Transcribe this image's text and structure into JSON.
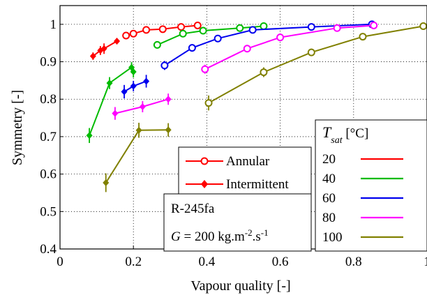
{
  "chart_data": {
    "type": "line",
    "xlabel": "Vapour quality [-]",
    "ylabel": "Symmetry [-]",
    "xlim": [
      0,
      1
    ],
    "ylim": [
      0.4,
      1.05
    ],
    "x_ticks": [
      0,
      0.2,
      0.4,
      0.6,
      0.8,
      1
    ],
    "x_tick_labels": [
      "0",
      "0.2",
      "0.4",
      "0.6",
      "0.8",
      "1"
    ],
    "y_ticks": [
      0.4,
      0.5,
      0.6,
      0.7,
      0.8,
      0.9,
      1.0
    ],
    "y_tick_labels": [
      "0.4",
      "0.5",
      "0.6",
      "0.7",
      "0.8",
      "0.9",
      "1"
    ],
    "grid": true,
    "annotation": {
      "fluid": "R-245fa",
      "flux_symbol": "G",
      "flux_text": " = 200 kg.m",
      "flux_exp1": "-2",
      "flux_mid": ".s",
      "flux_exp2": "-1"
    },
    "marker_legend": [
      {
        "label": "Annular",
        "marker": "open-circle",
        "color": "#ff0000"
      },
      {
        "label": "Intermittent",
        "marker": "filled-diamond",
        "color": "#ff0000"
      }
    ],
    "tsat_legend": {
      "title_symbol": "T",
      "title_sub": "sat",
      "title_unit": " [°C]",
      "entries": [
        {
          "label": "20",
          "color": "#ff0000"
        },
        {
          "label": "40",
          "color": "#00bb00"
        },
        {
          "label": "60",
          "color": "#0000ee"
        },
        {
          "label": "80",
          "color": "#ff00ff"
        },
        {
          "label": "100",
          "color": "#808000"
        }
      ]
    },
    "series": [
      {
        "tsat": "20",
        "color": "#ff0000",
        "intermittent": [
          [
            0.09,
            0.915,
            0.01
          ],
          [
            0.11,
            0.93,
            0.012
          ],
          [
            0.12,
            0.935,
            0.014
          ],
          [
            0.155,
            0.955,
            0.008
          ]
        ],
        "annular": [
          [
            0.18,
            0.97,
            0.008
          ],
          [
            0.2,
            0.975,
            0.007
          ],
          [
            0.235,
            0.985,
            0.006
          ],
          [
            0.28,
            0.987,
            0.006
          ],
          [
            0.33,
            0.993,
            0.005
          ],
          [
            0.375,
            0.997,
            0.005
          ]
        ]
      },
      {
        "tsat": "40",
        "color": "#00bb00",
        "intermittent": [
          [
            0.08,
            0.703,
            0.02
          ],
          [
            0.135,
            0.843,
            0.016
          ],
          [
            0.195,
            0.885,
            0.014
          ],
          [
            0.2,
            0.873,
            0.015
          ]
        ],
        "annular": [
          [
            0.265,
            0.945,
            0.008
          ],
          [
            0.335,
            0.975,
            0.007
          ],
          [
            0.39,
            0.983,
            0.005
          ],
          [
            0.49,
            0.99,
            0.004
          ],
          [
            0.555,
            0.995,
            0.004
          ]
        ]
      },
      {
        "tsat": "60",
        "color": "#0000ee",
        "intermittent": [
          [
            0.175,
            0.82,
            0.018
          ],
          [
            0.2,
            0.835,
            0.014
          ],
          [
            0.235,
            0.848,
            0.017
          ]
        ],
        "annular": [
          [
            0.285,
            0.89,
            0.012
          ],
          [
            0.36,
            0.937,
            0.01
          ],
          [
            0.43,
            0.962,
            0.008
          ],
          [
            0.525,
            0.985,
            0.006
          ],
          [
            0.685,
            0.993,
            0.005
          ],
          [
            0.85,
            1.0,
            0.004
          ]
        ]
      },
      {
        "tsat": "80",
        "color": "#ff00ff",
        "intermittent": [
          [
            0.15,
            0.762,
            0.017
          ],
          [
            0.225,
            0.78,
            0.015
          ],
          [
            0.295,
            0.8,
            0.015
          ]
        ],
        "annular": [
          [
            0.395,
            0.88,
            0.012
          ],
          [
            0.51,
            0.935,
            0.01
          ],
          [
            0.6,
            0.965,
            0.008
          ],
          [
            0.755,
            0.99,
            0.006
          ],
          [
            0.855,
            0.997,
            0.005
          ]
        ]
      },
      {
        "tsat": "100",
        "color": "#808000",
        "intermittent": [
          [
            0.125,
            0.577,
            0.025
          ],
          [
            0.215,
            0.717,
            0.02
          ],
          [
            0.295,
            0.718,
            0.018
          ]
        ],
        "annular": [
          [
            0.405,
            0.79,
            0.02
          ],
          [
            0.555,
            0.872,
            0.013
          ],
          [
            0.685,
            0.925,
            0.01
          ],
          [
            0.825,
            0.967,
            0.008
          ],
          [
            0.99,
            0.995,
            0.006
          ]
        ]
      }
    ]
  }
}
